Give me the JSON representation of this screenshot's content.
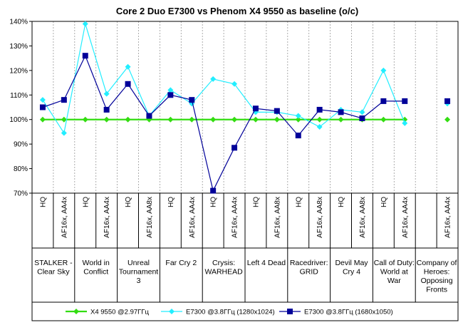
{
  "chart_data": {
    "type": "line",
    "title": "Core 2 Duo E7300 vs Phenom X4 9550 as baseline (o/c)",
    "ylim": [
      70,
      140
    ],
    "y_ticks": [
      "70%",
      "80%",
      "90%",
      "100%",
      "110%",
      "120%",
      "130%",
      "140%"
    ],
    "grid": "vertical dashed",
    "x_settings": [
      "HQ",
      "AF16x, AA4x",
      "HQ",
      "AF16x, AA4x",
      "HQ",
      "AF16x, AA8x",
      "HQ",
      "AF16x, AA4x",
      "HQ",
      "AF16x, AA4x",
      "HQ",
      "AF16x, AA8x",
      "HQ",
      "AF16x, AA8x",
      "HQ",
      "AF16x, AA8x",
      "HQ",
      "AF16x, AA4x",
      "",
      "AF16x, AA4x"
    ],
    "groups": [
      {
        "label": [
          "STALKER -",
          "Clear Sky"
        ]
      },
      {
        "label": [
          "World in",
          "Conflict"
        ]
      },
      {
        "label": [
          "Unreal",
          "Tournament",
          "3"
        ]
      },
      {
        "label": [
          "Far Cry 2"
        ]
      },
      {
        "label": [
          "Crysis:",
          "WARHEAD"
        ]
      },
      {
        "label": [
          "Left 4 Dead"
        ]
      },
      {
        "label": [
          "Racedriver:",
          "GRID"
        ]
      },
      {
        "label": [
          "Devil May",
          "Cry 4"
        ]
      },
      {
        "label": [
          "Call of Duty:",
          "World at",
          "War"
        ]
      },
      {
        "label": [
          "Company of",
          "Heroes:",
          "Opposing",
          "Fronts"
        ]
      }
    ],
    "series": [
      {
        "name": "X4 9550 @2.97ГГц",
        "color": "#33dd11",
        "marker": "diamond",
        "values": [
          100,
          100,
          100,
          100,
          100,
          100,
          100,
          100,
          100,
          100,
          100,
          100,
          100,
          100,
          100,
          100,
          100,
          100,
          null,
          100
        ]
      },
      {
        "name": "E7300 @3.8ГГц (1280x1024)",
        "color": "#22eeff",
        "marker": "diamond",
        "values": [
          108,
          94.5,
          139,
          110.5,
          121.5,
          101.5,
          112,
          106.5,
          116.5,
          114.5,
          103,
          103,
          101.5,
          97,
          104,
          103,
          120,
          98.5,
          null,
          106.5
        ]
      },
      {
        "name": "E7300 @3.8ГГц (1680x1050)",
        "color": "#000099",
        "marker": "square",
        "values": [
          105,
          108,
          126,
          104,
          114.5,
          101.5,
          110,
          108,
          71,
          88.5,
          104.5,
          103.5,
          93.5,
          104,
          103,
          100.5,
          107.5,
          107.5,
          null,
          107.5
        ]
      }
    ]
  }
}
